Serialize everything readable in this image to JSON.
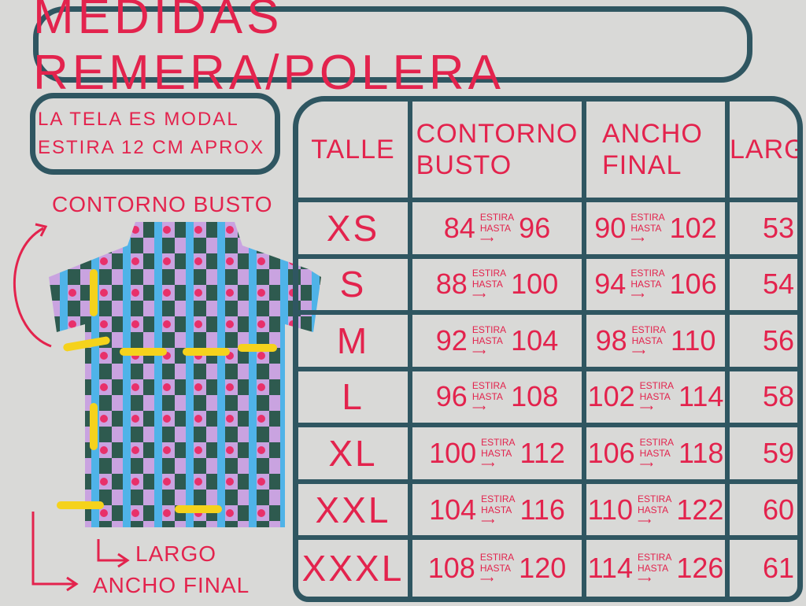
{
  "title": "MEDIDAS REMERA/POLERA",
  "note": {
    "line1": "LA TELA ES MODAL",
    "line2": "ESTIRA 12 CM APROX"
  },
  "labels": {
    "bust": "CONTORNO BUSTO",
    "length": "LARGO",
    "width": "ANCHO FINAL"
  },
  "table": {
    "headers": [
      "TALLE",
      "CONTORNO BUSTO",
      "ANCHO FINAL",
      "LARGO"
    ],
    "stretch_label_1": "ESTIRA",
    "stretch_label_2": "HASTA",
    "rows": [
      {
        "size": "XS",
        "bust": "84",
        "bust_max": "96",
        "width": "90",
        "width_max": "102",
        "length": "53"
      },
      {
        "size": "S",
        "bust": "88",
        "bust_max": "100",
        "width": "94",
        "width_max": "106",
        "length": "54"
      },
      {
        "size": "M",
        "bust": "92",
        "bust_max": "104",
        "width": "98",
        "width_max": "110",
        "length": "56"
      },
      {
        "size": "L",
        "bust": "96",
        "bust_max": "108",
        "width": "102",
        "width_max": "114",
        "length": "58"
      },
      {
        "size": "XL",
        "bust": "100",
        "bust_max": "112",
        "width": "106",
        "width_max": "118",
        "length": "59"
      },
      {
        "size": "XXL",
        "bust": "104",
        "bust_max": "116",
        "width": "110",
        "width_max": "122",
        "length": "60"
      },
      {
        "size": "XXXL",
        "bust": "108",
        "bust_max": "120",
        "width": "114",
        "width_max": "126",
        "length": "61"
      }
    ]
  },
  "colors": {
    "background": "#d9d9d7",
    "border": "#2f5661",
    "text": "#e3234d",
    "marker": "#f5d21c"
  }
}
